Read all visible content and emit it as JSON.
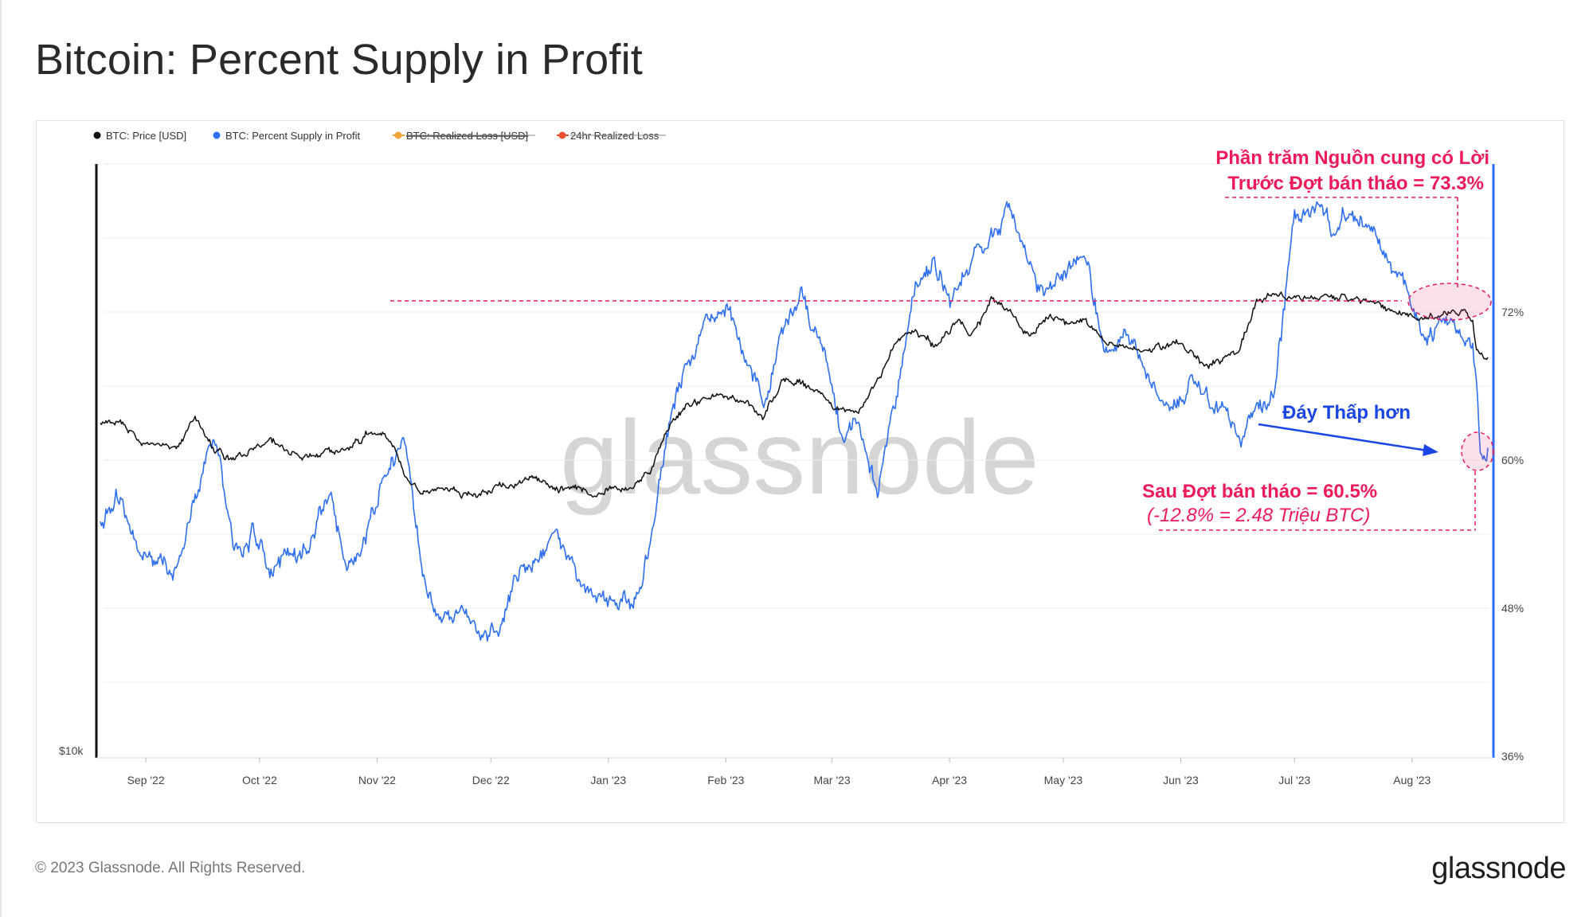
{
  "title": "Bitcoin: Percent Supply in Profit",
  "footer": {
    "copyright": "© 2023 Glassnode. All Rights Reserved.",
    "logo": "glassnode"
  },
  "watermark": "glassnode",
  "colors": {
    "price": "#111111",
    "supply": "#2e6ff2",
    "annotation_red": "#ee1a5c",
    "annotation_blue": "#1a46e6",
    "loss": "#f2a33a",
    "loss24": "#e8502e"
  },
  "annotations": {
    "before_line1": "Phần trăm Nguồn cung có Lời",
    "before_line2": "Trước Đợt bán tháo = 73.3%",
    "after_line1": "Sau Đợt bán tháo = 60.5%",
    "after_line2": "(-12.8% = 2.48 Triệu BTC)",
    "lower_low": "Đáy Thấp hơn"
  },
  "chart_data": {
    "type": "line",
    "title": "Bitcoin: Percent Supply in Profit",
    "legend_position": "top-left",
    "grid": true,
    "legend": [
      {
        "name": "BTC: Price [USD]",
        "color": "#111111",
        "hidden": false
      },
      {
        "name": "BTC: Percent Supply in Profit",
        "color": "#2e6ff2",
        "hidden": false
      },
      {
        "name": "BTC: Realized Loss [USD]",
        "color": "#f2a33a",
        "hidden": true
      },
      {
        "name": "24hr Realized Loss",
        "color": "#e8502e",
        "hidden": true
      }
    ],
    "x_ticks": [
      "Sep '22",
      "Oct '22",
      "Nov '22",
      "Dec '22",
      "Jan '23",
      "Feb '23",
      "Mar '23",
      "Apr '23",
      "May '23",
      "Jun '23",
      "Jul '23",
      "Aug '23"
    ],
    "y_left_label": "$10k",
    "y_right_ticks": [
      "36%",
      "48%",
      "60%",
      "72%"
    ],
    "y_right_range": [
      36,
      84
    ],
    "x_range": [
      "2022-08-20",
      "2023-08-21"
    ],
    "series": [
      {
        "name": "BTC: Percent Supply in Profit",
        "unit": "%",
        "x": [
          "2022-08-20",
          "2022-08-25",
          "2022-08-30",
          "2022-09-04",
          "2022-09-09",
          "2022-09-14",
          "2022-09-19",
          "2022-09-24",
          "2022-09-29",
          "2022-10-04",
          "2022-10-09",
          "2022-10-14",
          "2022-10-19",
          "2022-10-24",
          "2022-10-29",
          "2022-11-03",
          "2022-11-08",
          "2022-11-13",
          "2022-11-18",
          "2022-11-23",
          "2022-11-28",
          "2022-12-03",
          "2022-12-08",
          "2022-12-13",
          "2022-12-18",
          "2022-12-23",
          "2022-12-28",
          "2023-01-02",
          "2023-01-07",
          "2023-01-12",
          "2023-01-17",
          "2023-01-22",
          "2023-01-27",
          "2023-02-01",
          "2023-02-06",
          "2023-02-11",
          "2023-02-16",
          "2023-02-21",
          "2023-02-26",
          "2023-03-03",
          "2023-03-08",
          "2023-03-13",
          "2023-03-18",
          "2023-03-23",
          "2023-03-28",
          "2023-04-02",
          "2023-04-07",
          "2023-04-12",
          "2023-04-17",
          "2023-04-22",
          "2023-04-27",
          "2023-05-02",
          "2023-05-07",
          "2023-05-12",
          "2023-05-17",
          "2023-05-22",
          "2023-05-27",
          "2023-06-01",
          "2023-06-06",
          "2023-06-11",
          "2023-06-16",
          "2023-06-21",
          "2023-06-26",
          "2023-07-01",
          "2023-07-06",
          "2023-07-11",
          "2023-07-16",
          "2023-07-21",
          "2023-07-26",
          "2023-07-31",
          "2023-08-05",
          "2023-08-10",
          "2023-08-15",
          "2023-08-17",
          "2023-08-18",
          "2023-08-19",
          "2023-08-20",
          "2023-08-21"
        ],
        "y": [
          55,
          57,
          52.5,
          52,
          51,
          57,
          62,
          53,
          54.5,
          51,
          53,
          52.5,
          57,
          52,
          53.5,
          58.5,
          61.5,
          50.5,
          46,
          48,
          45.5,
          47.5,
          50,
          52,
          53.5,
          51,
          49,
          48,
          48,
          53.5,
          63,
          68,
          71,
          72,
          68,
          65,
          71,
          73,
          70,
          63,
          63,
          57,
          65,
          74,
          76,
          73,
          77,
          78,
          80,
          76,
          74,
          76,
          76,
          69,
          71,
          68,
          65,
          65,
          66,
          64,
          62,
          64,
          66,
          80,
          81,
          79,
          80,
          78,
          76,
          73,
          70,
          71,
          70,
          69,
          66,
          60.5,
          60.5,
          61
        ]
      },
      {
        "name": "BTC: Price [USD]",
        "unit": "USD",
        "x": [
          "2022-08-20",
          "2022-08-25",
          "2022-08-30",
          "2022-09-04",
          "2022-09-09",
          "2022-09-14",
          "2022-09-19",
          "2022-09-24",
          "2022-09-29",
          "2022-10-04",
          "2022-10-09",
          "2022-10-14",
          "2022-10-19",
          "2022-10-24",
          "2022-10-29",
          "2022-11-03",
          "2022-11-08",
          "2022-11-13",
          "2022-11-18",
          "2022-11-23",
          "2022-11-28",
          "2022-12-03",
          "2022-12-08",
          "2022-12-13",
          "2022-12-18",
          "2022-12-23",
          "2022-12-28",
          "2023-01-02",
          "2023-01-07",
          "2023-01-12",
          "2023-01-17",
          "2023-01-22",
          "2023-01-27",
          "2023-02-01",
          "2023-02-06",
          "2023-02-11",
          "2023-02-16",
          "2023-02-21",
          "2023-02-26",
          "2023-03-03",
          "2023-03-08",
          "2023-03-13",
          "2023-03-18",
          "2023-03-23",
          "2023-03-28",
          "2023-04-02",
          "2023-04-07",
          "2023-04-12",
          "2023-04-17",
          "2023-04-22",
          "2023-04-27",
          "2023-05-02",
          "2023-05-07",
          "2023-05-12",
          "2023-05-17",
          "2023-05-22",
          "2023-05-27",
          "2023-06-01",
          "2023-06-06",
          "2023-06-11",
          "2023-06-16",
          "2023-06-21",
          "2023-06-26",
          "2023-07-01",
          "2023-07-06",
          "2023-07-11",
          "2023-07-16",
          "2023-07-21",
          "2023-07-26",
          "2023-07-31",
          "2023-08-05",
          "2023-08-10",
          "2023-08-15",
          "2023-08-17",
          "2023-08-18",
          "2023-08-19",
          "2023-08-20",
          "2023-08-21"
        ],
        "y": [
          21500,
          21400,
          20200,
          19900,
          19500,
          21800,
          19500,
          19000,
          19400,
          20100,
          19450,
          19200,
          19250,
          19300,
          20600,
          20800,
          18100,
          16500,
          16600,
          16550,
          16200,
          16950,
          17100,
          17800,
          16750,
          16850,
          16550,
          16650,
          16950,
          17900,
          21100,
          22800,
          23100,
          23500,
          22850,
          21750,
          24500,
          24300,
          23400,
          22400,
          22100,
          24300,
          27200,
          28100,
          27100,
          28500,
          28000,
          30100,
          29400,
          27800,
          29300,
          28700,
          28800,
          26900,
          27000,
          26800,
          26700,
          27100,
          25700,
          25800,
          26300,
          30000,
          30500,
          30600,
          30300,
          30400,
          30250,
          29900,
          29300,
          29250,
          29050,
          29400,
          29300,
          28600,
          26600,
          26100,
          26100,
          26150
        ]
      }
    ]
  }
}
